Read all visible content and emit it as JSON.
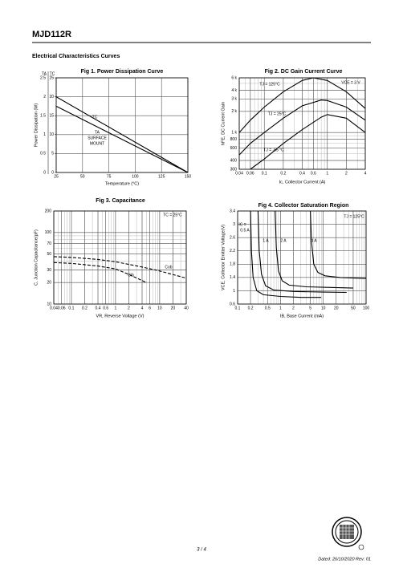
{
  "header": {
    "title": "MJD112R",
    "section": "Electrical Characteristics Curves"
  },
  "chart_data": [
    {
      "type": "line",
      "title": "Fig 1. Power Dissipation Curve",
      "xlabel": "Temperature (°C)",
      "ylabel": "Power Dissipation (W)",
      "y_header": "TA",
      "y2_header": "TC",
      "xlim": [
        25,
        150
      ],
      "xticks": [
        25,
        50,
        75,
        100,
        125,
        150
      ],
      "ylim": [
        0,
        2.5
      ],
      "yticks": [
        0,
        0.5,
        1,
        1.5,
        2,
        2.5
      ],
      "y2lim": [
        0,
        25
      ],
      "y2ticks": [
        0,
        5,
        10,
        15,
        20,
        25
      ],
      "grid": true,
      "series": [
        {
          "name": "TC",
          "axis": "y2",
          "color": "#000000",
          "x": [
            25,
            150
          ],
          "values": [
            20,
            0
          ]
        },
        {
          "name": "TA",
          "axis": "y",
          "color": "#000000",
          "x": [
            25,
            150
          ],
          "values": [
            1.75,
            0
          ]
        }
      ],
      "annotations": [
        "TC",
        "TA",
        "SURFACE",
        "MOUNT"
      ]
    },
    {
      "type": "line",
      "title": "Fig 2. DC Gain Current Curve",
      "xlabel": "Ic, Collector Current (A)",
      "ylabel": "hFE, DC Current Gain",
      "xlog": true,
      "ylog": true,
      "xlim": [
        0.04,
        4
      ],
      "xticks": [
        0.04,
        0.06,
        0.1,
        0.2,
        0.4,
        0.6,
        1,
        2,
        4
      ],
      "ylim": [
        300,
        6000
      ],
      "yticks": [
        300,
        400,
        600,
        800,
        {
          "value": 1000,
          "label": "1 k"
        },
        {
          "value": 2000,
          "label": "2 k"
        },
        {
          "value": 3000,
          "label": "3 k"
        },
        {
          "value": 4000,
          "label": "4 k"
        },
        {
          "value": 6000,
          "label": "6 k"
        }
      ],
      "grid": true,
      "series": [
        {
          "name": "TJ = 125°C",
          "color": "#000000",
          "x": [
            0.04,
            0.06,
            0.1,
            0.2,
            0.4,
            0.6,
            1,
            2,
            4
          ],
          "values": [
            1000,
            1500,
            2300,
            3800,
            5500,
            6000,
            5500,
            3800,
            2200
          ]
        },
        {
          "name": "TJ = 25°C",
          "color": "#000000",
          "x": [
            0.04,
            0.06,
            0.1,
            0.2,
            0.4,
            0.8,
            1,
            2,
            4
          ],
          "values": [
            480,
            700,
            1000,
            1600,
            2400,
            2900,
            2850,
            2300,
            1500
          ]
        },
        {
          "name": "TJ = -55 °C",
          "color": "#000000",
          "x": [
            0.06,
            0.1,
            0.2,
            0.4,
            0.8,
            1,
            2,
            4
          ],
          "values": [
            300,
            420,
            700,
            1100,
            1650,
            1800,
            1600,
            1000
          ]
        }
      ],
      "annotations": [
        "TJ = 125°C",
        "VCE = 3 V",
        "TJ = 25°C",
        "TJ = -55 °C"
      ]
    },
    {
      "type": "line",
      "title": "Fig 3. Capacitance",
      "xlabel": "VR, Reverse Voltage (V)",
      "ylabel": "C, Junction Capacitance(pF)",
      "xlog": true,
      "ylog": true,
      "xlim": [
        0.04,
        40
      ],
      "xticks": [
        0.04,
        0.06,
        0.1,
        0.2,
        0.4,
        0.6,
        1,
        2,
        4,
        6,
        10,
        20,
        40
      ],
      "ylim": [
        10,
        200
      ],
      "yticks": [
        10,
        20,
        30,
        50,
        70,
        100,
        200
      ],
      "grid": true,
      "series": [
        {
          "name": "Cob",
          "color": "#000000",
          "dash": true,
          "x": [
            0.04,
            0.1,
            0.4,
            1,
            4,
            10,
            40
          ],
          "values": [
            46,
            45,
            42,
            39,
            33,
            29,
            23
          ]
        },
        {
          "name": "Cib",
          "color": "#000000",
          "dash": true,
          "x": [
            0.04,
            0.1,
            0.4,
            1,
            2,
            5
          ],
          "values": [
            38,
            37,
            34,
            31,
            26,
            20
          ]
        }
      ],
      "annotations": [
        "TC = 25°C",
        "Cob",
        "Cib"
      ]
    },
    {
      "type": "line",
      "title": "Fig 4. Collector Saturation Region",
      "xlabel": "IB, Base Current (mA)",
      "ylabel": "VCE, Collector Emitter Voltage(V)",
      "xlog": true,
      "xlim": [
        0.1,
        100
      ],
      "xticks": [
        0.1,
        0.2,
        0.5,
        1,
        2,
        5,
        10,
        20,
        50,
        100
      ],
      "ylim": [
        0.6,
        3.4
      ],
      "yticks": [
        0.6,
        1,
        1.4,
        1.8,
        2.2,
        2.6,
        3,
        3.4
      ],
      "grid": true,
      "series": [
        {
          "name": "0.5 A",
          "color": "#000000",
          "x": [
            0.2,
            0.21,
            0.23,
            0.28,
            0.4,
            1,
            3,
            9
          ],
          "values": [
            3.4,
            2.2,
            1.4,
            1,
            0.88,
            0.83,
            0.8,
            0.8
          ]
        },
        {
          "name": "1 A",
          "color": "#000000",
          "x": [
            0.3,
            0.32,
            0.36,
            0.45,
            0.7,
            2,
            10,
            35
          ],
          "values": [
            3.4,
            2.2,
            1.5,
            1.15,
            1.02,
            0.98,
            0.96,
            0.95
          ]
        },
        {
          "name": "2 A",
          "color": "#000000",
          "x": [
            0.75,
            0.8,
            0.9,
            1.1,
            1.6,
            4,
            15,
            50
          ],
          "values": [
            3.4,
            2.3,
            1.6,
            1.3,
            1.17,
            1.12,
            1.1,
            1.08
          ]
        },
        {
          "name": "4 A",
          "color": "#000000",
          "x": [
            5,
            5.3,
            6,
            7.5,
            11,
            25,
            60,
            100
          ],
          "values": [
            3.4,
            2.5,
            1.8,
            1.55,
            1.45,
            1.4,
            1.38,
            1.37
          ]
        }
      ],
      "annotations": [
        "IC =",
        "0.5 A",
        "1 A",
        "2 A",
        "4 A",
        "TJ = 125°C"
      ]
    }
  ],
  "footer": {
    "page": "3 / 4",
    "date": "Dated: 26/10/2020 Rev: 01"
  }
}
